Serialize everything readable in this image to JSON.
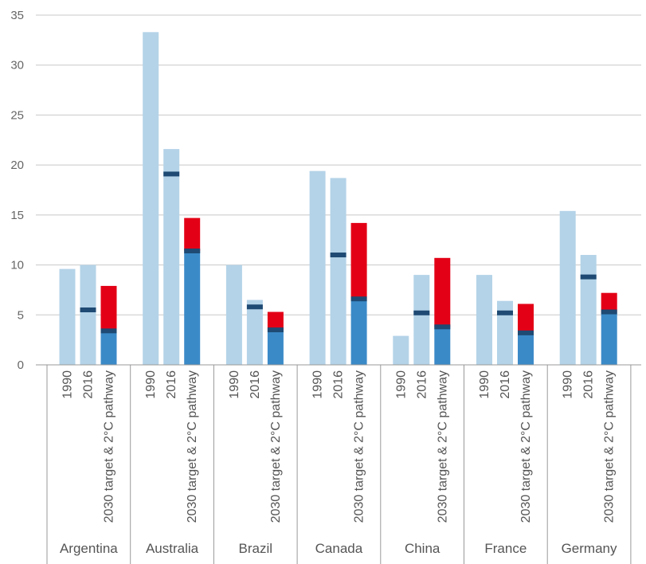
{
  "chart_data": {
    "type": "bar",
    "ylim": [
      0,
      35
    ],
    "y_ticks": [
      0,
      5,
      10,
      15,
      20,
      25,
      30,
      35
    ],
    "grid": true,
    "bar_categories": [
      "1990",
      "2016",
      "2030 target & 2°C pathway"
    ],
    "groups": [
      {
        "name": "Argentina",
        "v1990": 9.6,
        "v2016": 10.0,
        "marker2016": 5.5,
        "target": 7.9,
        "pathway": 3.4
      },
      {
        "name": "Australia",
        "v1990": 33.3,
        "v2016": 21.6,
        "marker2016": 19.1,
        "target": 14.7,
        "pathway": 11.4
      },
      {
        "name": "Brazil",
        "v1990": 10.0,
        "v2016": 6.5,
        "marker2016": 5.8,
        "target": 5.3,
        "pathway": 3.5
      },
      {
        "name": "Canada",
        "v1990": 19.4,
        "v2016": 18.7,
        "marker2016": 11.0,
        "target": 14.2,
        "pathway": 6.6
      },
      {
        "name": "China",
        "v1990": 2.9,
        "v2016": 9.0,
        "marker2016": 5.2,
        "target": 10.7,
        "pathway": 3.8
      },
      {
        "name": "France",
        "v1990": 9.0,
        "v2016": 6.4,
        "marker2016": 5.2,
        "target": 6.1,
        "pathway": 3.2
      },
      {
        "name": "Germany",
        "v1990": 15.4,
        "v2016": 11.0,
        "marker2016": 8.8,
        "target": 7.2,
        "pathway": 5.3
      }
    ],
    "colors": {
      "light_bar": "#b4d3e8",
      "pathway_bar": "#3b8ac8",
      "target_bar": "#e30016",
      "marker": "#1e4a73",
      "grid": "#c8c8c8",
      "axis": "#999999"
    }
  }
}
